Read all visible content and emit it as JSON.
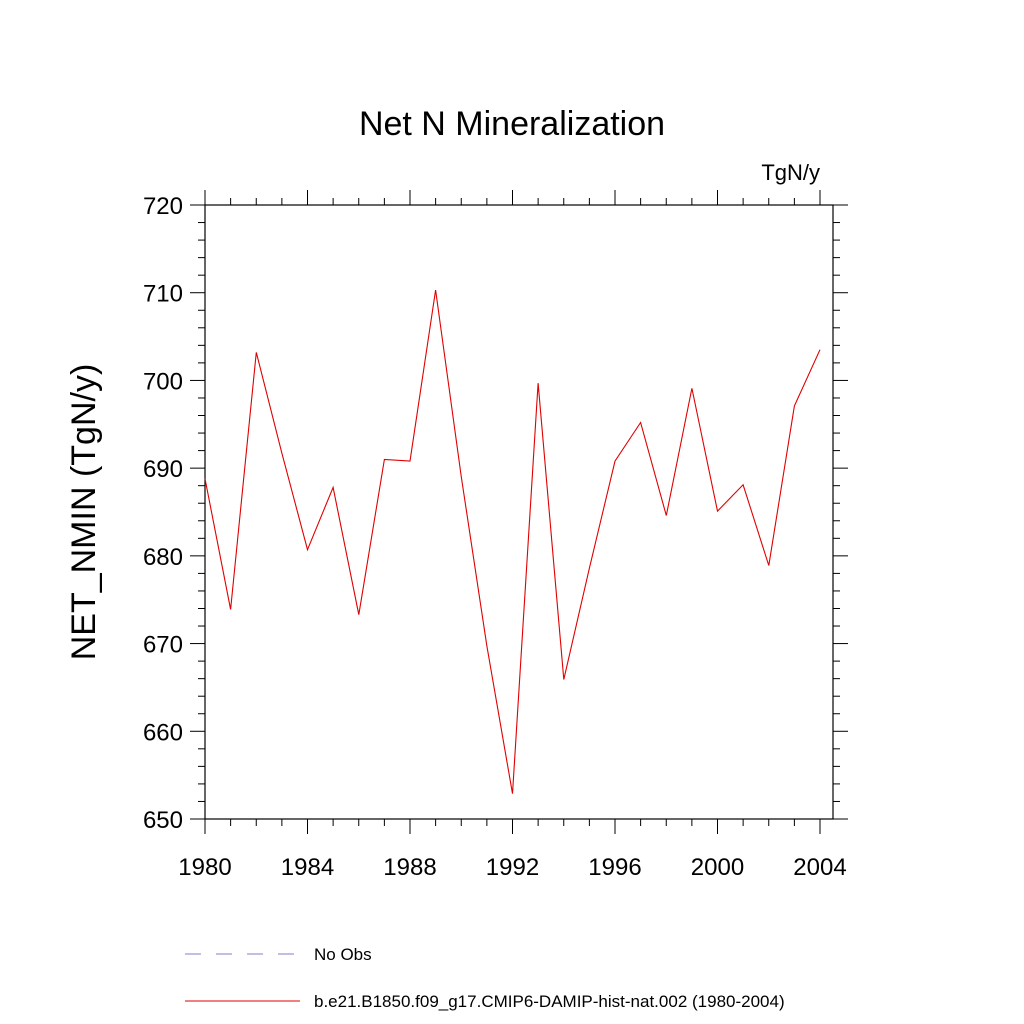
{
  "chart_data": {
    "type": "line",
    "title": "Net N Mineralization",
    "units_label": "TgN/y",
    "xlabel": "",
    "ylabel": "NET_NMIN  (TgN/y)",
    "xlim": [
      1980,
      2004
    ],
    "ylim": [
      650,
      720
    ],
    "x_ticks": [
      1980,
      1984,
      1988,
      1992,
      1996,
      2000,
      2004
    ],
    "y_ticks": [
      650,
      660,
      670,
      680,
      690,
      700,
      710,
      720
    ],
    "grid": false,
    "legend_position": "bottom",
    "series": [
      {
        "name": "No Obs",
        "color": "#7f7fbf",
        "style": "dashed",
        "x": [],
        "y": []
      },
      {
        "name": "b.e21.B1850.f09_g17.CMIP6-DAMIP-hist-nat.002 (1980-2004)",
        "color": "#e00000",
        "style": "solid",
        "x": [
          1980,
          1981,
          1982,
          1983,
          1984,
          1985,
          1986,
          1987,
          1988,
          1989,
          1990,
          1991,
          1992,
          1993,
          1994,
          1995,
          1996,
          1997,
          1998,
          1999,
          2000,
          2001,
          2002,
          2003,
          2004
        ],
        "y": [
          688.8,
          673.9,
          703.2,
          691.7,
          680.7,
          687.8,
          673.3,
          691.0,
          690.8,
          710.3,
          689.0,
          669.7,
          652.9,
          699.7,
          665.9,
          678.6,
          690.8,
          695.2,
          684.6,
          699.1,
          685.1,
          688.1,
          678.9,
          697.1,
          703.5
        ]
      }
    ]
  }
}
